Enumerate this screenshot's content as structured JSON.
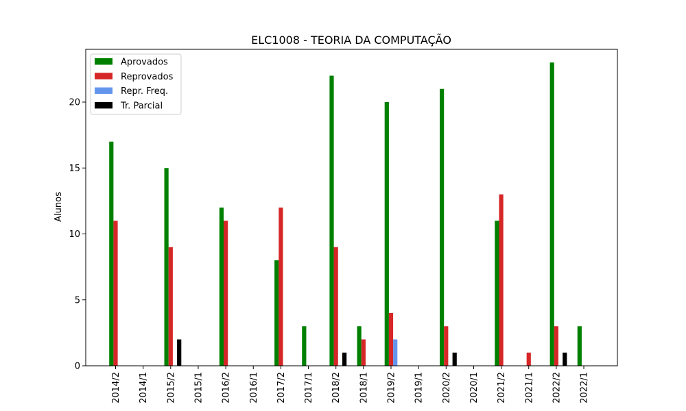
{
  "chart_data": {
    "type": "bar",
    "title": "ELC1008 - TEORIA DA COMPUTAÇÃO",
    "xlabel": "",
    "ylabel": "Alunos",
    "ylim": [
      0,
      24
    ],
    "yticks": [
      0,
      5,
      10,
      15,
      20
    ],
    "grid": false,
    "legend_position": "top-left",
    "categories": [
      "2014/2",
      "2014/1",
      "2015/2",
      "2015/1",
      "2016/2",
      "2016/1",
      "2017/2",
      "2017/1",
      "2018/2",
      "2018/1",
      "2019/2",
      "2019/1",
      "2020/2",
      "2020/1",
      "2021/2",
      "2021/1",
      "2022/2",
      "2022/1"
    ],
    "series": [
      {
        "name": "Aprovados",
        "color": "#008000",
        "values": [
          17,
          0,
          15,
          0,
          12,
          0,
          8,
          3,
          22,
          3,
          20,
          0,
          21,
          0,
          11,
          0,
          23,
          3
        ]
      },
      {
        "name": "Reprovados",
        "color": "#d62728",
        "values": [
          11,
          0,
          9,
          0,
          11,
          0,
          12,
          0,
          9,
          2,
          4,
          0,
          3,
          0,
          13,
          1,
          3,
          0
        ]
      },
      {
        "name": "Repr. Freq.",
        "color": "#6495ed",
        "values": [
          0,
          0,
          0,
          0,
          0,
          0,
          0,
          0,
          0,
          0,
          2,
          0,
          0,
          0,
          0,
          0,
          0,
          0
        ]
      },
      {
        "name": "Tr. Parcial",
        "color": "#000000",
        "values": [
          0,
          0,
          2,
          0,
          0,
          0,
          0,
          0,
          1,
          0,
          0,
          0,
          1,
          0,
          0,
          0,
          1,
          0
        ]
      }
    ]
  }
}
